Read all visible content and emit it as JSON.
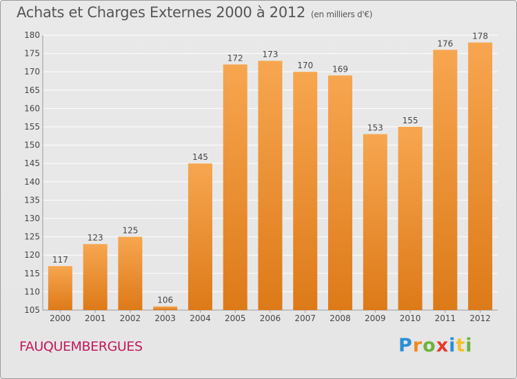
{
  "chart_data": {
    "type": "bar",
    "title": "Achats et Charges Externes 2000 à 2012",
    "subtitle": "(en milliers d'€)",
    "categories": [
      "2000",
      "2001",
      "2002",
      "2003",
      "2004",
      "2005",
      "2006",
      "2007",
      "2008",
      "2009",
      "2010",
      "2011",
      "2012"
    ],
    "values": [
      117,
      123,
      125,
      106,
      145,
      172,
      173,
      170,
      169,
      153,
      155,
      176,
      178
    ],
    "ylim": [
      105,
      180
    ],
    "yticks": [
      105,
      110,
      115,
      120,
      125,
      130,
      135,
      140,
      145,
      150,
      155,
      160,
      165,
      170,
      175,
      180
    ],
    "grid": true,
    "bar_color": "#f5a04a",
    "bar_color_dark": "#e07f1d",
    "grid_color": "#ffffff"
  },
  "footer": {
    "city": "FAUQUEMBERGUES",
    "city_color": "#c2185b",
    "logo_letters": [
      "P",
      "r",
      "o",
      "x",
      "i",
      "t",
      "i"
    ],
    "logo_colors": [
      "#2a8fd6",
      "#f08a1c",
      "#6cb33f",
      "#e63b2e",
      "#2a8fd6",
      "#f5c02a",
      "#6cb33f"
    ]
  }
}
